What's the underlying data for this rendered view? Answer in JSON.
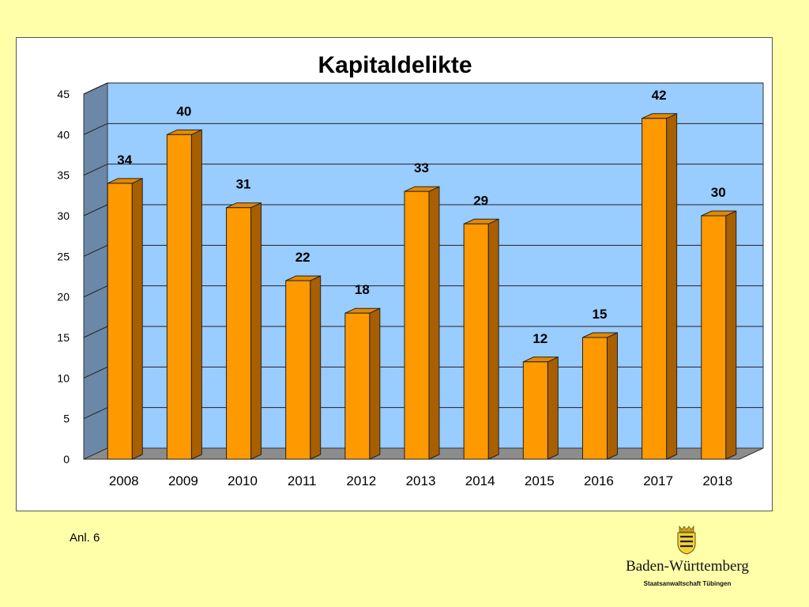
{
  "chart_data": {
    "type": "bar",
    "title": "Kapitaldelikte",
    "categories": [
      "2008",
      "2009",
      "2010",
      "2011",
      "2012",
      "2013",
      "2014",
      "2015",
      "2016",
      "2017",
      "2018"
    ],
    "values": [
      34,
      40,
      31,
      22,
      18,
      33,
      29,
      12,
      15,
      42,
      30
    ],
    "ylim": [
      0,
      45
    ],
    "yticks": [
      0,
      5,
      10,
      15,
      20,
      25,
      30,
      35,
      40,
      45
    ],
    "xlabel": "",
    "ylabel": "",
    "grid": true,
    "legend": "none",
    "style": "3d-columns",
    "colors": {
      "bar_front": "#FF9900",
      "bar_top": "#E38A00",
      "bar_side": "#A85F00",
      "plot_back": "#99CCFF",
      "side_wall": "#6B88A8",
      "floor": "#8C8C8C"
    }
  },
  "footnote": "Anl. 6",
  "branding": {
    "state": "Baden-Württemberg",
    "office": "Staatsanwaltschaft Tübingen",
    "logo": "coat-of-arms-icon"
  }
}
